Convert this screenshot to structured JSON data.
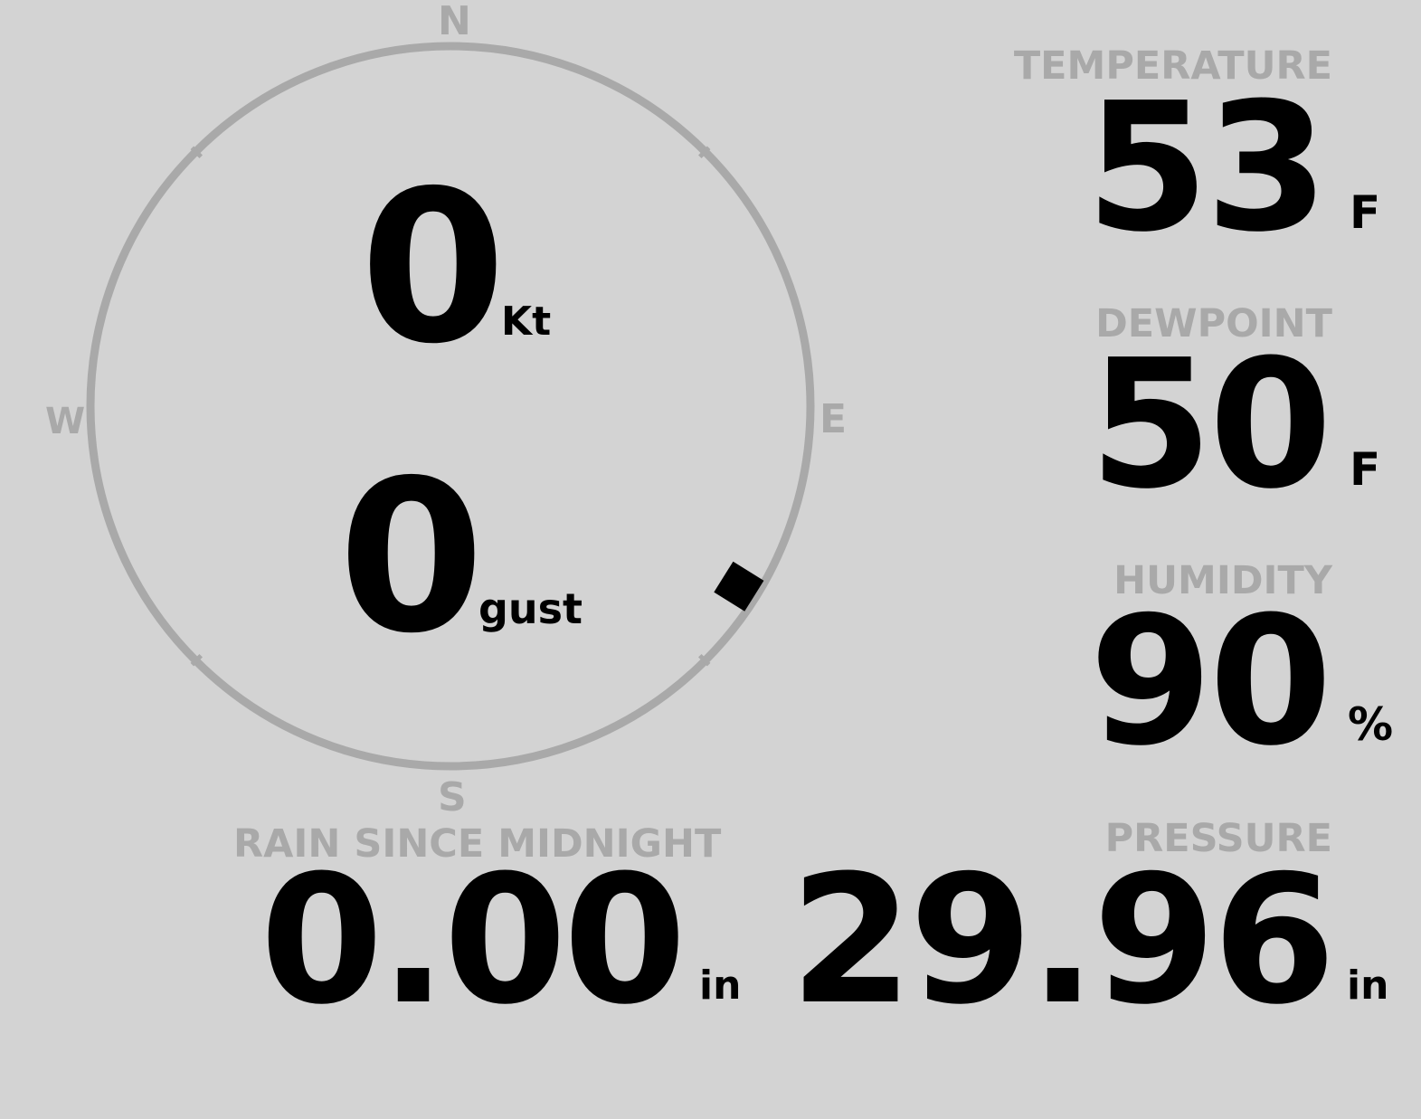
{
  "compass": {
    "north": "N",
    "south": "S",
    "east": "E",
    "west": "W",
    "direction_deg": 122,
    "ring_color": "#a9a9a9",
    "marker_color": "#000000"
  },
  "wind": {
    "speed": "0",
    "speed_unit": "Kt",
    "gust": "0",
    "gust_unit": "gust"
  },
  "temperature": {
    "label": "TEMPERATURE",
    "value": "53",
    "unit": "F"
  },
  "dewpoint": {
    "label": "DEWPOINT",
    "value": "50",
    "unit": "F"
  },
  "humidity": {
    "label": "HUMIDITY",
    "value": "90",
    "unit": "%"
  },
  "rain": {
    "label": "RAIN SINCE MIDNIGHT",
    "value": "0.00",
    "unit": "in"
  },
  "pressure": {
    "label": "PRESSURE",
    "value": "29.96",
    "unit": "in"
  },
  "colors": {
    "background": "#d3d3d3",
    "label": "#a9a9a9",
    "value": "#000000"
  }
}
